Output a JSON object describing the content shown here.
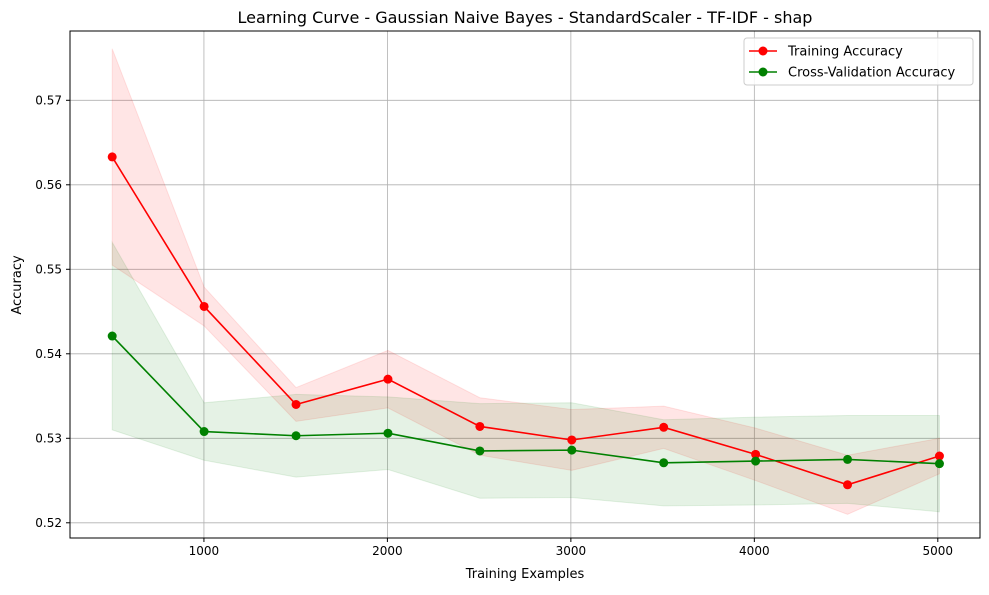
{
  "chart_data": {
    "type": "line",
    "title": "Learning Curve - Gaussian Naive Bayes - StandardScaler - TF-IDF - shap",
    "xlabel": "Training Examples",
    "ylabel": "Accuracy",
    "xlim": [
      270,
      5230
    ],
    "ylim": [
      0.5182,
      0.5782
    ],
    "xticks": [
      1000,
      2000,
      3000,
      4000,
      5000
    ],
    "yticks": [
      0.52,
      0.53,
      0.54,
      0.55,
      0.56,
      0.57
    ],
    "xtick_labels": [
      "1000",
      "2000",
      "3000",
      "4000",
      "5000"
    ],
    "ytick_labels": [
      "0.52",
      "0.53",
      "0.54",
      "0.55",
      "0.56",
      "0.57"
    ],
    "grid": true,
    "legend_position": "top-right",
    "x": [
      500,
      1001,
      1502,
      2003,
      2504,
      3005,
      3506,
      4007,
      4508,
      5009
    ],
    "series": [
      {
        "name": "Training Accuracy",
        "color": "#ff0000",
        "values": [
          0.5633,
          0.5456,
          0.534,
          0.537,
          0.5314,
          0.5298,
          0.5313,
          0.5281,
          0.5245,
          0.5279
        ],
        "lower": [
          0.5505,
          0.5433,
          0.532,
          0.5336,
          0.528,
          0.5262,
          0.5288,
          0.525,
          0.521,
          0.5258
        ],
        "upper": [
          0.5761,
          0.5479,
          0.536,
          0.5404,
          0.5348,
          0.5334,
          0.5338,
          0.5312,
          0.528,
          0.53
        ],
        "band_color": "#ff0000"
      },
      {
        "name": "Cross-Validation Accuracy",
        "color": "#008000",
        "values": [
          0.5421,
          0.5308,
          0.5303,
          0.5306,
          0.5285,
          0.5286,
          0.5271,
          0.5273,
          0.5275,
          0.527
        ],
        "lower": [
          0.531,
          0.5274,
          0.5254,
          0.5263,
          0.5229,
          0.523,
          0.522,
          0.5221,
          0.5223,
          0.5213
        ],
        "upper": [
          0.5532,
          0.5342,
          0.5352,
          0.5349,
          0.5341,
          0.5342,
          0.5322,
          0.5325,
          0.5327,
          0.5327
        ],
        "band_color": "#008000"
      }
    ]
  }
}
